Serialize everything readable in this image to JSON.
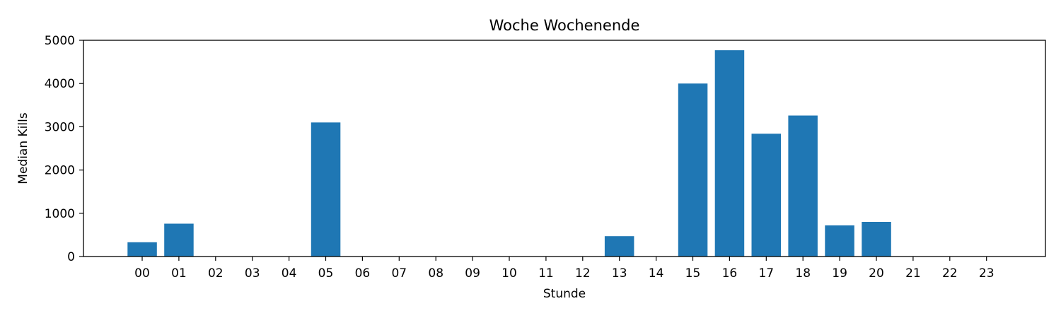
{
  "chart_data": {
    "type": "bar",
    "title": "Woche Wochenende",
    "xlabel": "Stunde",
    "ylabel": "Median Kills",
    "categories": [
      "00",
      "01",
      "02",
      "03",
      "04",
      "05",
      "06",
      "07",
      "08",
      "09",
      "10",
      "11",
      "12",
      "13",
      "14",
      "15",
      "16",
      "17",
      "18",
      "19",
      "20",
      "21",
      "22",
      "23"
    ],
    "values": [
      330,
      760,
      0,
      0,
      0,
      3100,
      0,
      0,
      0,
      0,
      0,
      0,
      0,
      470,
      0,
      4000,
      4770,
      2840,
      3260,
      720,
      800,
      0,
      0,
      0
    ],
    "ylim": [
      0,
      5000
    ],
    "yticks": [
      0,
      1000,
      2000,
      3000,
      4000,
      5000
    ],
    "bar_color": "#1f77b4",
    "grid": false,
    "legend": "none"
  }
}
